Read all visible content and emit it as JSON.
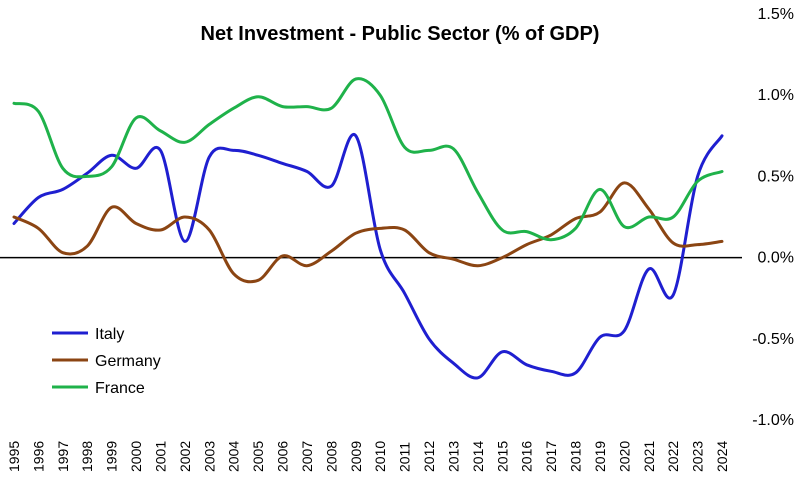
{
  "chart_data": {
    "type": "line",
    "title": "Net Investment - Public Sector (% of GDP)",
    "xlabel": "",
    "ylabel": "",
    "x": [
      "1995",
      "1996",
      "1997",
      "1998",
      "1999",
      "2000",
      "2001",
      "2002",
      "2003",
      "2004",
      "2005",
      "2006",
      "2007",
      "2008",
      "2009",
      "2010",
      "2011",
      "2012",
      "2013",
      "2014",
      "2015",
      "2016",
      "2017",
      "2018",
      "2019",
      "2020",
      "2021",
      "2022",
      "2023",
      "2024"
    ],
    "ylim": [
      -1.0,
      1.5
    ],
    "yticks": [
      {
        "value": 1.5,
        "label": "1.5%"
      },
      {
        "value": 1.0,
        "label": "1.0%"
      },
      {
        "value": 0.5,
        "label": "0.5%"
      },
      {
        "value": 0.0,
        "label": "0.0%"
      },
      {
        "value": -0.5,
        "label": "-0.5%"
      },
      {
        "value": -1.0,
        "label": "-1.0%"
      }
    ],
    "y_axis_side": "right",
    "zero_line": true,
    "grid": false,
    "legend_position": "bottom-left",
    "series": [
      {
        "name": "Italy",
        "color": "#1f1fd0",
        "values": [
          0.21,
          0.37,
          0.42,
          0.52,
          0.63,
          0.55,
          0.66,
          0.1,
          0.62,
          0.66,
          0.63,
          0.58,
          0.53,
          0.44,
          0.75,
          0.05,
          -0.22,
          -0.5,
          -0.65,
          -0.74,
          -0.58,
          -0.66,
          -0.7,
          -0.71,
          -0.49,
          -0.45,
          -0.07,
          -0.23,
          0.5,
          0.75
        ]
      },
      {
        "name": "Germany",
        "color": "#8b4513",
        "values": [
          0.25,
          0.18,
          0.03,
          0.07,
          0.31,
          0.21,
          0.17,
          0.25,
          0.17,
          -0.1,
          -0.14,
          0.01,
          -0.05,
          0.04,
          0.15,
          0.18,
          0.17,
          0.03,
          -0.01,
          -0.05,
          0.0,
          0.08,
          0.14,
          0.24,
          0.28,
          0.46,
          0.3,
          0.09,
          0.08,
          0.1
        ]
      },
      {
        "name": "France",
        "color": "#1fb24a",
        "values": [
          0.95,
          0.9,
          0.55,
          0.5,
          0.56,
          0.86,
          0.78,
          0.71,
          0.82,
          0.92,
          0.99,
          0.93,
          0.93,
          0.92,
          1.1,
          1.0,
          0.68,
          0.66,
          0.67,
          0.4,
          0.17,
          0.16,
          0.11,
          0.18,
          0.42,
          0.19,
          0.25,
          0.25,
          0.47,
          0.53
        ]
      }
    ]
  }
}
